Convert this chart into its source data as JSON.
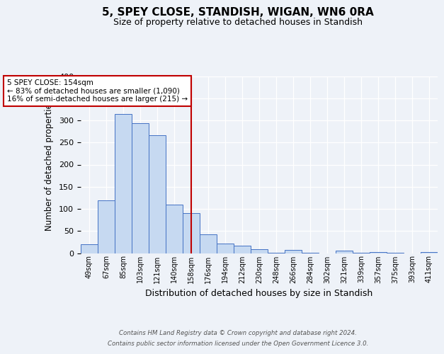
{
  "title": "5, SPEY CLOSE, STANDISH, WIGAN, WN6 0RA",
  "subtitle": "Size of property relative to detached houses in Standish",
  "xlabel": "Distribution of detached houses by size in Standish",
  "ylabel": "Number of detached properties",
  "bar_labels": [
    "49sqm",
    "67sqm",
    "85sqm",
    "103sqm",
    "121sqm",
    "140sqm",
    "158sqm",
    "176sqm",
    "194sqm",
    "212sqm",
    "230sqm",
    "248sqm",
    "266sqm",
    "284sqm",
    "302sqm",
    "321sqm",
    "339sqm",
    "357sqm",
    "375sqm",
    "393sqm",
    "411sqm"
  ],
  "bar_values": [
    20,
    120,
    315,
    293,
    267,
    110,
    90,
    43,
    22,
    17,
    9,
    1,
    7,
    1,
    0,
    6,
    1,
    2,
    1,
    0,
    2
  ],
  "bar_color": "#c6d9f1",
  "bar_edge_color": "#4472c4",
  "vline_x": 6,
  "vline_color": "#c00000",
  "annotation_title": "5 SPEY CLOSE: 154sqm",
  "annotation_line1": "← 83% of detached houses are smaller (1,090)",
  "annotation_line2": "16% of semi-detached houses are larger (215) →",
  "annotation_box_color": "#c00000",
  "ylim": [
    0,
    400
  ],
  "yticks": [
    0,
    50,
    100,
    150,
    200,
    250,
    300,
    350,
    400
  ],
  "footer1": "Contains HM Land Registry data © Crown copyright and database right 2024.",
  "footer2": "Contains public sector information licensed under the Open Government Licence 3.0.",
  "bg_color": "#eef2f8",
  "plot_bg_color": "#eef2f8"
}
